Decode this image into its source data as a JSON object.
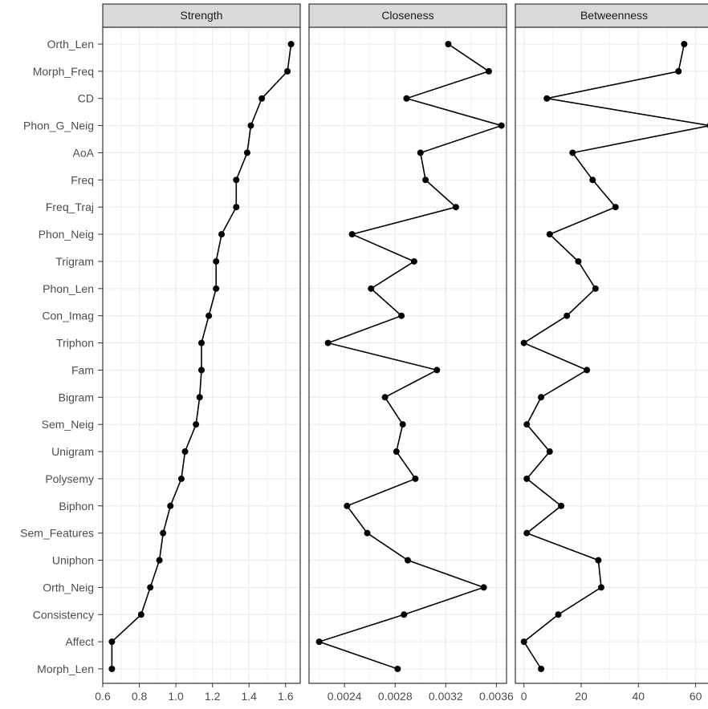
{
  "chart_data": {
    "type": "line",
    "title": "",
    "xlabel": "",
    "ylabel": "",
    "grid": true,
    "categories": [
      "Orth_Len",
      "Morph_Freq",
      "CD",
      "Phon_G_Neig",
      "AoA",
      "Freq",
      "Freq_Traj",
      "Phon_Neig",
      "Trigram",
      "Phon_Len",
      "Con_Imag",
      "Triphon",
      "Fam",
      "Bigram",
      "Sem_Neig",
      "Unigram",
      "Polysemy",
      "Biphon",
      "Sem_Features",
      "Uniphon",
      "Orth_Neig",
      "Consistency",
      "Affect",
      "Morph_Len"
    ],
    "panels": [
      {
        "name": "Strength",
        "xlim": [
          0.6,
          1.68
        ],
        "ticks": [
          0.6,
          0.8,
          1.0,
          1.2,
          1.4,
          1.6
        ],
        "tick_labels": [
          "0.6",
          "0.8",
          "1.0",
          "1.2",
          "1.4",
          "1.6"
        ],
        "values": [
          1.63,
          1.61,
          1.47,
          1.41,
          1.39,
          1.33,
          1.33,
          1.25,
          1.22,
          1.22,
          1.18,
          1.14,
          1.14,
          1.13,
          1.11,
          1.05,
          1.03,
          0.97,
          0.93,
          0.91,
          0.86,
          0.81,
          0.65,
          0.65
        ]
      },
      {
        "name": "Closeness",
        "xlim": [
          0.00212,
          0.00368
        ],
        "ticks": [
          0.0024,
          0.0028,
          0.0032,
          0.0036
        ],
        "tick_labels": [
          "0.0024",
          "0.0028",
          "0.0032",
          "0.0036"
        ],
        "values": [
          0.00322,
          0.00354,
          0.00289,
          0.00364,
          0.003,
          0.00304,
          0.00328,
          0.00246,
          0.00295,
          0.00261,
          0.00285,
          0.00227,
          0.00313,
          0.00272,
          0.00286,
          0.00281,
          0.00296,
          0.00242,
          0.00258,
          0.0029,
          0.0035,
          0.00287,
          0.0022,
          0.00282
        ]
      },
      {
        "name": "Betweenness",
        "xlim": [
          -3,
          66
        ],
        "ticks": [
          0,
          20,
          40,
          60
        ],
        "tick_labels": [
          "0",
          "20",
          "40",
          "60"
        ],
        "values": [
          56,
          54,
          8,
          65,
          17,
          24,
          32,
          9,
          19,
          25,
          15,
          0,
          22,
          6,
          1,
          9,
          1,
          13,
          1,
          26,
          27,
          12,
          0,
          6
        ]
      }
    ]
  }
}
